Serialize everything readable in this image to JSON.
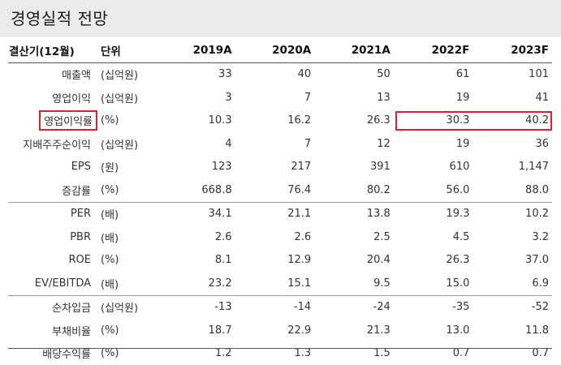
{
  "title": "경영실적 전망",
  "header": {
    "label": "결산기(12월)",
    "unit": "단위",
    "years": [
      "2019A",
      "2020A",
      "2021A",
      "2022F",
      "2023F"
    ]
  },
  "groups": [
    [
      {
        "label": "매출액",
        "unit": "(십억원)",
        "values": [
          "33",
          "40",
          "50",
          "61",
          "101"
        ]
      },
      {
        "label": "영업이익",
        "unit": "(십억원)",
        "values": [
          "3",
          "7",
          "13",
          "19",
          "41"
        ]
      },
      {
        "label": "영업이익률",
        "unit": "(%)",
        "values": [
          "10.3",
          "16.2",
          "26.3",
          "30.3",
          "40.2"
        ],
        "highlight": true
      },
      {
        "label": "지배주주순이익",
        "unit": "(십억원)",
        "values": [
          "4",
          "7",
          "12",
          "19",
          "36"
        ]
      },
      {
        "label": "EPS",
        "unit": "(원)",
        "values": [
          "123",
          "217",
          "391",
          "610",
          "1,147"
        ]
      },
      {
        "label": "증감률",
        "unit": "(%)",
        "values": [
          "668.8",
          "76.4",
          "80.2",
          "56.0",
          "88.0"
        ]
      }
    ],
    [
      {
        "label": "PER",
        "unit": "(배)",
        "values": [
          "34.1",
          "21.1",
          "13.8",
          "19.3",
          "10.2"
        ]
      },
      {
        "label": "PBR",
        "unit": "(배)",
        "values": [
          "2.6",
          "2.6",
          "2.5",
          "4.5",
          "3.2"
        ]
      },
      {
        "label": "ROE",
        "unit": "(%)",
        "values": [
          "8.1",
          "12.9",
          "20.4",
          "26.3",
          "37.0"
        ]
      },
      {
        "label": "EV/EBITDA",
        "unit": "(배)",
        "values": [
          "23.2",
          "15.1",
          "9.5",
          "15.0",
          "6.9"
        ]
      }
    ],
    [
      {
        "label": "순차입금",
        "unit": "(십억원)",
        "values": [
          "-13",
          "-14",
          "-24",
          "-35",
          "-52"
        ]
      },
      {
        "label": "부채비율",
        "unit": "(%)",
        "values": [
          "18.7",
          "22.9",
          "21.3",
          "13.0",
          "11.8"
        ]
      },
      {
        "label": "배당수익률",
        "unit": "(%)",
        "values": [
          "1.2",
          "1.3",
          "1.5",
          "0.7",
          "0.7"
        ]
      }
    ]
  ],
  "colors": {
    "highlight": "#d9232d",
    "title_bg": "#ebebeb"
  }
}
